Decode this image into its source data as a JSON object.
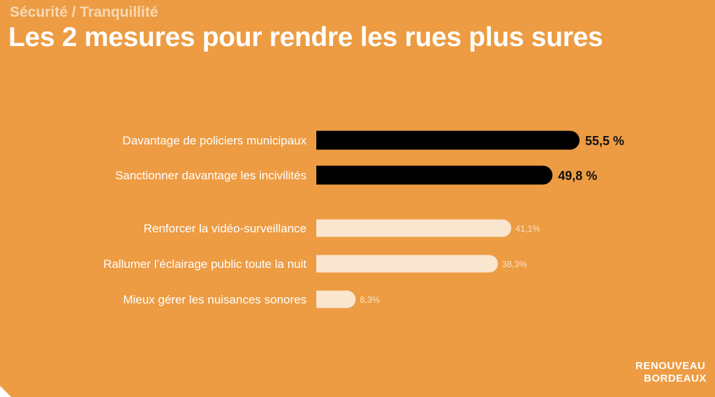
{
  "header": {
    "subtitle": "Sécurité / Tranquillité",
    "title": "Les 2 mesures pour rendre les rues plus sures"
  },
  "logo": {
    "text_line1": "RENOUVEAU",
    "text_line2": "BORDEAUX"
  },
  "colors": {
    "background": "#ED9C43",
    "highlight_bar": "#000000",
    "other_bar": "#FAE5CF"
  },
  "chart_data": {
    "type": "bar",
    "orientation": "horizontal",
    "title": "Les 2 mesures pour rendre les rues plus sures",
    "xlabel": "",
    "ylabel": "",
    "unit": "%",
    "xlim": [
      0,
      60
    ],
    "grid": false,
    "categories": [
      "Davantage de policiers municipaux",
      "Sanctionner davantage les incivilités",
      "Renforcer la vidéo-surveillance",
      "Rallumer l’éclairage public toute la nuit",
      "Mieux gérer les nuisances sonores"
    ],
    "values": [
      55.5,
      49.8,
      41.1,
      38.3,
      8.3
    ],
    "value_labels": [
      "55,5 %",
      "49,8 %",
      "41,1%",
      "38,3%",
      "8,3%"
    ],
    "highlighted": [
      true,
      true,
      false,
      false,
      false
    ]
  }
}
